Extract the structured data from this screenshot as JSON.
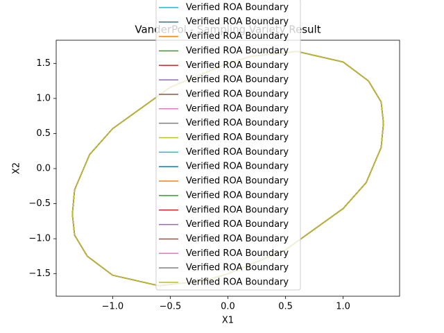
{
  "chart_data": {
    "type": "line",
    "title": "VanderPol - Sampling Variety Result",
    "x_label": "X1",
    "y_label": "X2",
    "x": [
      1.35,
      1.33,
      1.22,
      1.0,
      0.6,
      0.2,
      0,
      -0.5,
      -1.0,
      -1.2,
      -1.33,
      -1.35,
      -1.33,
      -1.22,
      -1.0,
      -0.6,
      -0.2,
      0,
      0.5,
      1.0,
      1.2,
      1.33,
      1.35
    ],
    "series": [
      {
        "name": "Verified ROA Boundary",
        "color": "#17becf",
        "values": [
          0.65,
          0.95,
          1.25,
          1.52,
          1.67,
          1.6,
          1.5,
          1.16,
          0.57,
          0.2,
          -0.3,
          -0.65,
          -0.95,
          -1.25,
          -1.52,
          -1.67,
          -1.6,
          -1.5,
          -1.16,
          -0.57,
          -0.2,
          0.3,
          0.65
        ]
      },
      {
        "name": "Verified ROA Boundary",
        "color": "#1f77b4",
        "values": [
          0.65,
          0.95,
          1.25,
          1.52,
          1.67,
          1.6,
          1.5,
          1.16,
          0.57,
          0.2,
          -0.3,
          -0.65,
          -0.95,
          -1.25,
          -1.52,
          -1.67,
          -1.6,
          -1.5,
          -1.16,
          -0.57,
          -0.2,
          0.3,
          0.65
        ]
      },
      {
        "name": "Verified ROA Boundary",
        "color": "#ff7f0e",
        "values": [
          0.65,
          0.95,
          1.25,
          1.52,
          1.67,
          1.6,
          1.5,
          1.16,
          0.57,
          0.2,
          -0.3,
          -0.65,
          -0.95,
          -1.25,
          -1.52,
          -1.67,
          -1.6,
          -1.5,
          -1.16,
          -0.57,
          -0.2,
          0.3,
          0.65
        ]
      },
      {
        "name": "Verified ROA Boundary",
        "color": "#2ca02c",
        "values": [
          0.65,
          0.95,
          1.25,
          1.52,
          1.67,
          1.6,
          1.5,
          1.16,
          0.57,
          0.2,
          -0.3,
          -0.65,
          -0.95,
          -1.25,
          -1.52,
          -1.67,
          -1.6,
          -1.5,
          -1.16,
          -0.57,
          -0.2,
          0.3,
          0.65
        ]
      },
      {
        "name": "Verified ROA Boundary",
        "color": "#d62728",
        "values": [
          0.65,
          0.95,
          1.25,
          1.52,
          1.67,
          1.6,
          1.5,
          1.16,
          0.57,
          0.2,
          -0.3,
          -0.65,
          -0.95,
          -1.25,
          -1.52,
          -1.67,
          -1.6,
          -1.5,
          -1.16,
          -0.57,
          -0.2,
          0.3,
          0.65
        ]
      },
      {
        "name": "Verified ROA Boundary",
        "color": "#9467bd",
        "values": [
          0.65,
          0.95,
          1.25,
          1.52,
          1.67,
          1.6,
          1.5,
          1.16,
          0.57,
          0.2,
          -0.3,
          -0.65,
          -0.95,
          -1.25,
          -1.52,
          -1.67,
          -1.6,
          -1.5,
          -1.16,
          -0.57,
          -0.2,
          0.3,
          0.65
        ]
      },
      {
        "name": "Verified ROA Boundary",
        "color": "#8c564b",
        "values": [
          0.65,
          0.95,
          1.25,
          1.52,
          1.67,
          1.6,
          1.5,
          1.16,
          0.57,
          0.2,
          -0.3,
          -0.65,
          -0.95,
          -1.25,
          -1.52,
          -1.67,
          -1.6,
          -1.5,
          -1.16,
          -0.57,
          -0.2,
          0.3,
          0.65
        ]
      },
      {
        "name": "Verified ROA Boundary",
        "color": "#e377c2",
        "values": [
          0.65,
          0.95,
          1.25,
          1.52,
          1.67,
          1.6,
          1.5,
          1.16,
          0.57,
          0.2,
          -0.3,
          -0.65,
          -0.95,
          -1.25,
          -1.52,
          -1.67,
          -1.6,
          -1.5,
          -1.16,
          -0.57,
          -0.2,
          0.3,
          0.65
        ]
      },
      {
        "name": "Verified ROA Boundary",
        "color": "#7f7f7f",
        "values": [
          0.65,
          0.95,
          1.25,
          1.52,
          1.67,
          1.6,
          1.5,
          1.16,
          0.57,
          0.2,
          -0.3,
          -0.65,
          -0.95,
          -1.25,
          -1.52,
          -1.67,
          -1.6,
          -1.5,
          -1.16,
          -0.57,
          -0.2,
          0.3,
          0.65
        ]
      },
      {
        "name": "Verified ROA Boundary",
        "color": "#bcbd22",
        "values": [
          0.65,
          0.95,
          1.25,
          1.52,
          1.67,
          1.6,
          1.5,
          1.16,
          0.57,
          0.2,
          -0.3,
          -0.65,
          -0.95,
          -1.25,
          -1.52,
          -1.67,
          -1.6,
          -1.5,
          -1.16,
          -0.57,
          -0.2,
          0.3,
          0.65
        ]
      },
      {
        "name": "Verified ROA Boundary",
        "color": "#17becf",
        "values": [
          0.65,
          0.95,
          1.25,
          1.52,
          1.67,
          1.6,
          1.5,
          1.16,
          0.57,
          0.2,
          -0.3,
          -0.65,
          -0.95,
          -1.25,
          -1.52,
          -1.67,
          -1.6,
          -1.5,
          -1.16,
          -0.57,
          -0.2,
          0.3,
          0.65
        ]
      },
      {
        "name": "Verified ROA Boundary",
        "color": "#1f77b4",
        "values": [
          0.65,
          0.95,
          1.25,
          1.52,
          1.67,
          1.6,
          1.5,
          1.16,
          0.57,
          0.2,
          -0.3,
          -0.65,
          -0.95,
          -1.25,
          -1.52,
          -1.67,
          -1.6,
          -1.5,
          -1.16,
          -0.57,
          -0.2,
          0.3,
          0.65
        ]
      },
      {
        "name": "Verified ROA Boundary",
        "color": "#ff7f0e",
        "values": [
          0.65,
          0.95,
          1.25,
          1.52,
          1.67,
          1.6,
          1.5,
          1.16,
          0.57,
          0.2,
          -0.3,
          -0.65,
          -0.95,
          -1.25,
          -1.52,
          -1.67,
          -1.6,
          -1.5,
          -1.16,
          -0.57,
          -0.2,
          0.3,
          0.65
        ]
      },
      {
        "name": "Verified ROA Boundary",
        "color": "#2ca02c",
        "values": [
          0.65,
          0.95,
          1.25,
          1.52,
          1.67,
          1.6,
          1.5,
          1.16,
          0.57,
          0.2,
          -0.3,
          -0.65,
          -0.95,
          -1.25,
          -1.52,
          -1.67,
          -1.6,
          -1.5,
          -1.16,
          -0.57,
          -0.2,
          0.3,
          0.65
        ]
      },
      {
        "name": "Verified ROA Boundary",
        "color": "#d62728",
        "values": [
          0.65,
          0.95,
          1.25,
          1.52,
          1.67,
          1.6,
          1.5,
          1.16,
          0.57,
          0.2,
          -0.3,
          -0.65,
          -0.95,
          -1.25,
          -1.52,
          -1.67,
          -1.6,
          -1.5,
          -1.16,
          -0.57,
          -0.2,
          0.3,
          0.65
        ]
      },
      {
        "name": "Verified ROA Boundary",
        "color": "#9467bd",
        "values": [
          0.65,
          0.95,
          1.25,
          1.52,
          1.67,
          1.6,
          1.5,
          1.16,
          0.57,
          0.2,
          -0.3,
          -0.65,
          -0.95,
          -1.25,
          -1.52,
          -1.67,
          -1.6,
          -1.5,
          -1.16,
          -0.57,
          -0.2,
          0.3,
          0.65
        ]
      },
      {
        "name": "Verified ROA Boundary",
        "color": "#8c564b",
        "values": [
          0.65,
          0.95,
          1.25,
          1.52,
          1.67,
          1.6,
          1.5,
          1.16,
          0.57,
          0.2,
          -0.3,
          -0.65,
          -0.95,
          -1.25,
          -1.52,
          -1.67,
          -1.6,
          -1.5,
          -1.16,
          -0.57,
          -0.2,
          0.3,
          0.65
        ]
      },
      {
        "name": "Verified ROA Boundary",
        "color": "#e377c2",
        "values": [
          0.65,
          0.95,
          1.25,
          1.52,
          1.67,
          1.6,
          1.5,
          1.16,
          0.57,
          0.2,
          -0.3,
          -0.65,
          -0.95,
          -1.25,
          -1.52,
          -1.67,
          -1.6,
          -1.5,
          -1.16,
          -0.57,
          -0.2,
          0.3,
          0.65
        ]
      },
      {
        "name": "Verified ROA Boundary",
        "color": "#7f7f7f",
        "values": [
          0.65,
          0.95,
          1.25,
          1.52,
          1.67,
          1.6,
          1.5,
          1.16,
          0.57,
          0.2,
          -0.3,
          -0.65,
          -0.95,
          -1.25,
          -1.52,
          -1.67,
          -1.6,
          -1.5,
          -1.16,
          -0.57,
          -0.2,
          0.3,
          0.65
        ]
      },
      {
        "name": "Verified ROA Boundary",
        "color": "#bcbd22",
        "values": [
          0.65,
          0.95,
          1.25,
          1.52,
          1.67,
          1.6,
          1.5,
          1.16,
          0.57,
          0.2,
          -0.3,
          -0.65,
          -0.95,
          -1.25,
          -1.52,
          -1.67,
          -1.6,
          -1.5,
          -1.16,
          -0.57,
          -0.2,
          0.3,
          0.65
        ]
      }
    ],
    "xlim": [
      -1.49,
      1.49
    ],
    "ylim": [
      -1.82,
      1.83
    ],
    "xticks": [
      {
        "value": -1,
        "label": "−1.0"
      },
      {
        "value": -0.5,
        "label": "−0.5"
      },
      {
        "value": 0,
        "label": "0.0"
      },
      0.5,
      {
        "value": 1,
        "label": "1.0"
      }
    ],
    "yticks": [
      {
        "value": -1.5,
        "label": "−1.5"
      },
      {
        "value": -1,
        "label": "−1.0"
      },
      {
        "value": -0.5,
        "label": "−0.5"
      },
      {
        "value": 0,
        "label": "0.0"
      },
      0.5,
      {
        "value": 1,
        "label": "1.0"
      },
      1.5
    ],
    "grid": false,
    "legend": "upper center"
  }
}
